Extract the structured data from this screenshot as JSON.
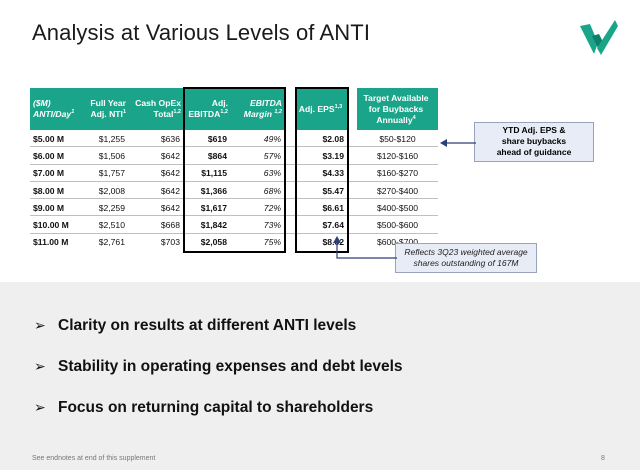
{
  "title": "Analysis at Various Levels of ANTI",
  "brand": {
    "accent_color": "#1aa58a"
  },
  "table": {
    "headers": {
      "col0_line1": "($M)",
      "col0_line2": "ANTI/Day",
      "col0_sup": "1",
      "col1_line1": "Full Year",
      "col1_line2": "Adj. NTI",
      "col1_sup": "1",
      "col2_line1": "Cash OpEx",
      "col2_line2": "Total",
      "col2_sup": "1,2",
      "col3_line1": "Adj.",
      "col3_line2": "EBITDA",
      "col3_sup": "1,2",
      "col4_line1": "EBITDA",
      "col4_line2": "Margin",
      "col4_sup": "1,2",
      "col5_line1": "Adj. EPS",
      "col5_sup": "1,3",
      "col6_line1": "Target Available",
      "col6_line2": "for Buybacks",
      "col6_line3": "Annually",
      "col6_sup": "4"
    },
    "rows": [
      [
        "$5.00 M",
        "$1,255",
        "$636",
        "$619",
        "49%",
        "$2.08",
        "$50-$120"
      ],
      [
        "$6.00 M",
        "$1,506",
        "$642",
        "$864",
        "57%",
        "$3.19",
        "$120-$160"
      ],
      [
        "$7.00 M",
        "$1,757",
        "$642",
        "$1,115",
        "63%",
        "$4.33",
        "$160-$270"
      ],
      [
        "$8.00 M",
        "$2,008",
        "$642",
        "$1,366",
        "68%",
        "$5.47",
        "$270-$400"
      ],
      [
        "$9.00 M",
        "$2,259",
        "$642",
        "$1,617",
        "72%",
        "$6.61",
        "$400-$500"
      ],
      [
        "$10.00 M",
        "$2,510",
        "$668",
        "$1,842",
        "73%",
        "$7.64",
        "$500-$600"
      ],
      [
        "$11.00 M",
        "$2,761",
        "$703",
        "$2,058",
        "75%",
        "$8.62",
        "$600-$700"
      ]
    ]
  },
  "callouts": {
    "eps_line1": "YTD Adj. EPS &",
    "eps_line2": "share buybacks",
    "eps_line3": "ahead of guidance",
    "shares_line1": "Reflects 3Q23 weighted average",
    "shares_line2": "shares outstanding of 167M"
  },
  "bullets": [
    {
      "mark": "➢",
      "text": "Clarity on results at different ANTI levels"
    },
    {
      "mark": "➢",
      "text": "Stability in operating expenses and debt levels"
    },
    {
      "mark": "➢",
      "text": "Focus on returning capital to shareholders"
    }
  ],
  "footer": "See endnotes at end of this supplement",
  "page_number": "8"
}
